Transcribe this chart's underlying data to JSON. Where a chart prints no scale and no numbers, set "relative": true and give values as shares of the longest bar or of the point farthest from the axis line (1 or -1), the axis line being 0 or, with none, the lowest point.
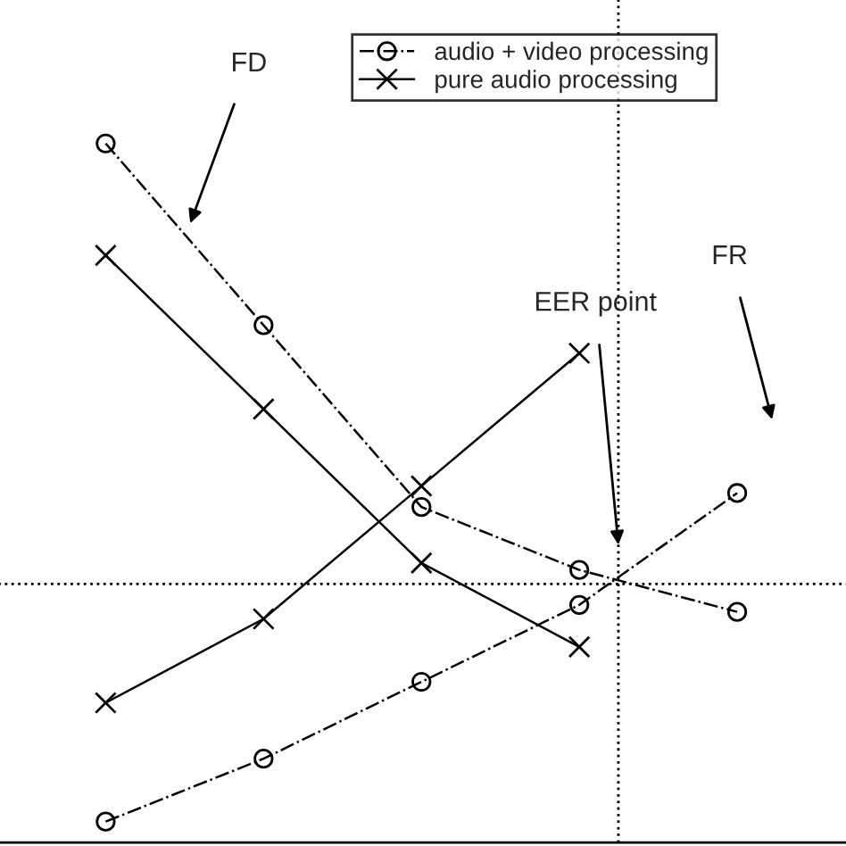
{
  "chart_data": {
    "type": "line",
    "relative": true,
    "legend": "top right",
    "grid": false,
    "categories": [
      null,
      null,
      null,
      null,
      null
    ],
    "series": [
      {
        "name": "audio + video processing",
        "color": "#000000",
        "marker": "circle",
        "line_style": "dashdot",
        "values": [
          1.0,
          0.74,
          0.48,
          0.39,
          0.33
        ]
      },
      {
        "name": "pure audio processing",
        "color": "#000000",
        "marker": "cross",
        "line_style": "solid",
        "values": [
          0.84,
          0.62,
          0.4,
          0.28,
          null
        ]
      },
      {
        "color": "#000000",
        "marker": "circle",
        "line_style": "dashdot",
        "values": [
          0.03,
          0.12,
          0.23,
          0.34,
          0.5
        ]
      },
      {
        "color": "#000000",
        "marker": "cross",
        "line_style": "solid",
        "values": [
          0.2,
          0.32,
          0.51,
          0.7,
          null
        ]
      }
    ],
    "ref_lines": [
      {
        "axis": "y",
        "value": 0.37,
        "line_style": "dotted",
        "color": "#000000"
      }
    ],
    "annotations": [
      "FD",
      "EER point",
      "FR"
    ]
  }
}
